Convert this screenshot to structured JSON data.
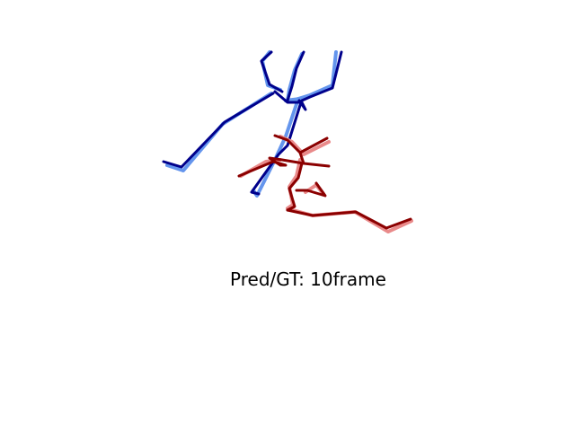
{
  "caption": "Pred/GT: 10frame",
  "colors": {
    "background": "#ffffff",
    "pred_blue": "#00008b",
    "gt_blue": "#6495ed",
    "pred_red": "#8b0000",
    "gt_red": "#e98a8a"
  }
}
